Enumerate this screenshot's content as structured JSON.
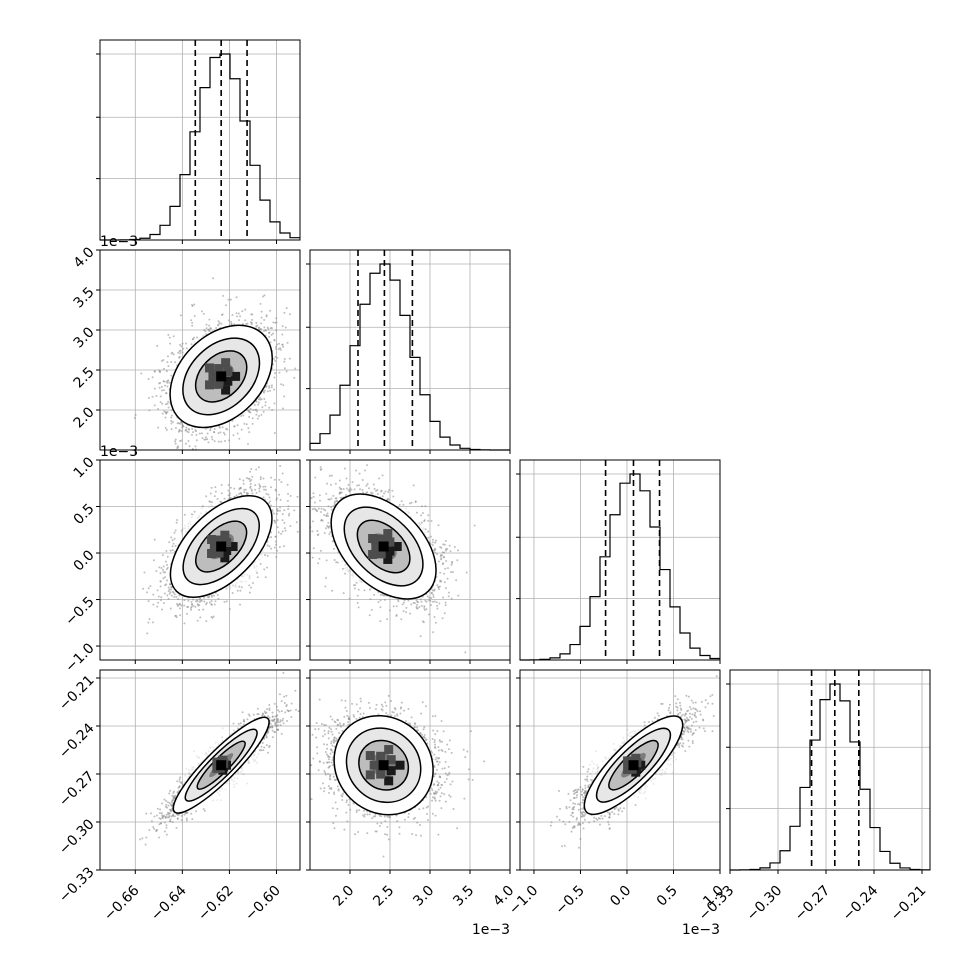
{
  "chart_data": {
    "type": "corner",
    "grid": true,
    "parameters": [
      {
        "range": [
          -0.675,
          -0.59
        ],
        "ticks": [
          -0.66,
          -0.64,
          -0.62,
          -0.6
        ],
        "tick_labels": [
          "−0.66",
          "−0.64",
          "−0.62",
          "−0.60"
        ],
        "offset": "",
        "mean": -0.6235,
        "sigma": 0.0105,
        "quantiles": [
          -0.6345,
          -0.6235,
          -0.6125
        ]
      },
      {
        "range": [
          1.5,
          4.0
        ],
        "ticks": [
          2.0,
          2.5,
          3.0,
          3.5,
          4.0
        ],
        "tick_labels": [
          "2.0",
          "2.5",
          "3.0",
          "3.5",
          "4.0"
        ],
        "offset": "1e−3",
        "mean": 2.42,
        "sigma": 0.33,
        "quantiles": [
          2.1,
          2.43,
          2.78
        ]
      },
      {
        "range": [
          -1.15,
          1.0
        ],
        "ticks": [
          -1.0,
          -0.5,
          0.0,
          0.5,
          1.0
        ],
        "tick_labels": [
          "−1.0",
          "−0.5",
          "0.0",
          "0.5",
          "1.0"
        ],
        "offset": "1e−3",
        "mean": 0.07,
        "sigma": 0.28,
        "quantiles": [
          -0.23,
          0.07,
          0.35
        ]
      },
      {
        "range": [
          -0.33,
          -0.205
        ],
        "ticks": [
          -0.33,
          -0.3,
          -0.27,
          -0.24,
          -0.21
        ],
        "tick_labels": [
          "−0.33",
          "−0.30",
          "−0.27",
          "−0.24",
          "−0.21"
        ],
        "offset": "",
        "mean": -0.2645,
        "sigma": 0.0145,
        "quantiles": [
          -0.279,
          -0.2645,
          -0.2495
        ]
      }
    ],
    "correlations": [
      {
        "pair": [
          1,
          0
        ],
        "rho": 0.35
      },
      {
        "pair": [
          2,
          0
        ],
        "rho": 0.55
      },
      {
        "pair": [
          2,
          1
        ],
        "rho": -0.45
      },
      {
        "pair": [
          3,
          0
        ],
        "rho": 0.9
      },
      {
        "pair": [
          3,
          1
        ],
        "rho": -0.1
      },
      {
        "pair": [
          3,
          2
        ],
        "rho": 0.82
      }
    ]
  }
}
